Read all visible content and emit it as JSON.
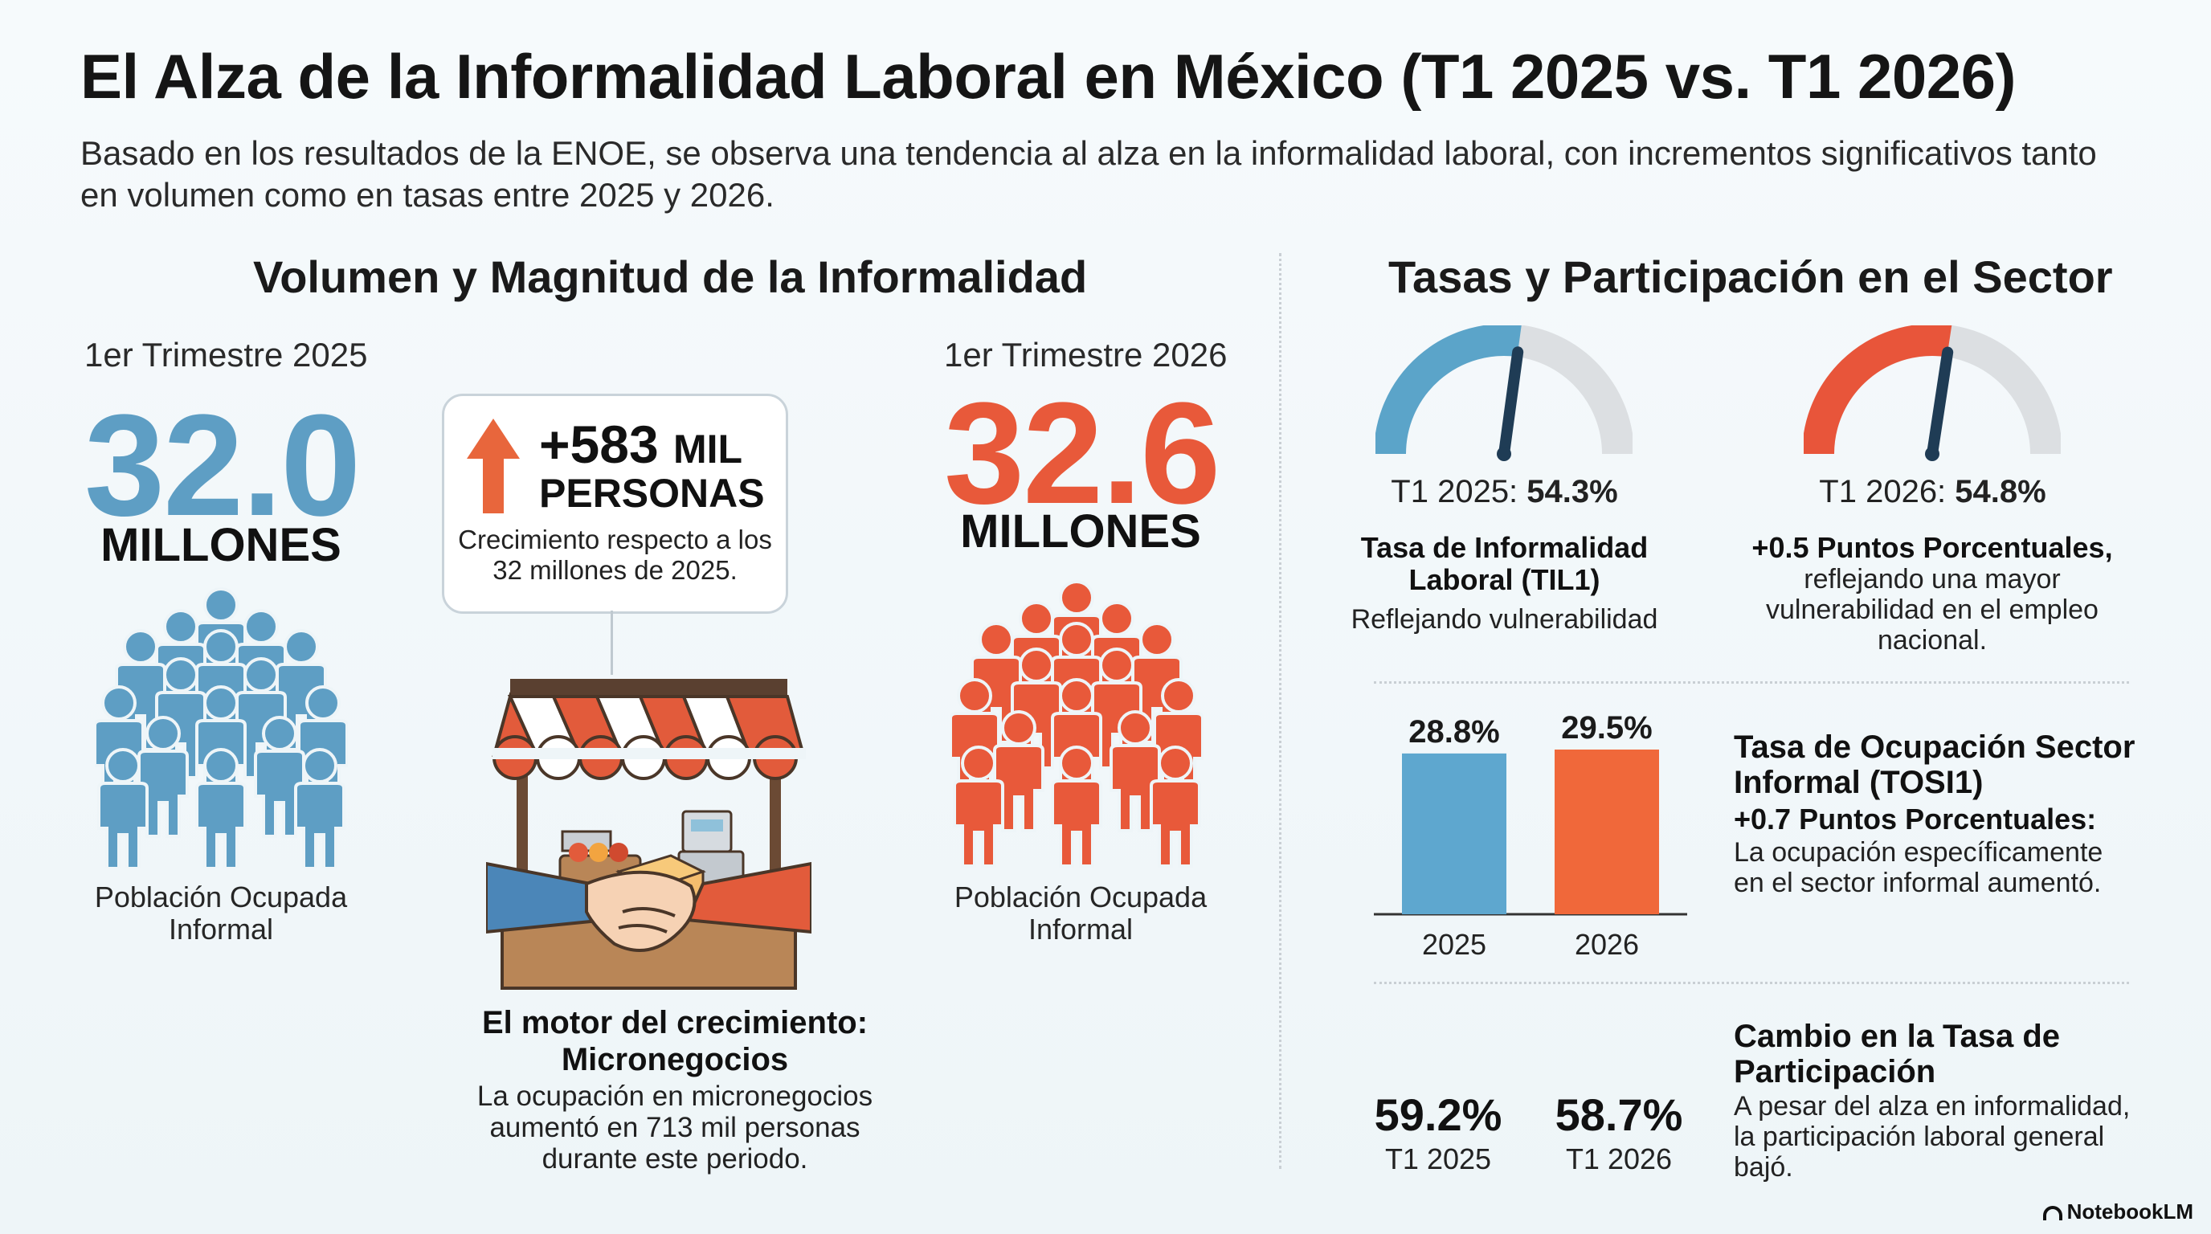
{
  "title": "El Alza de la Informalidad Laboral en México (T1 2025 vs. T1 2026)",
  "subtitle": "Basado en los resultados de la ENOE, se observa una tendencia al alza en la informalidad laboral, con incrementos significativos tanto en volumen como en tasas entre 2025 y 2026.",
  "left": {
    "heading": "Volumen y Magnitud de la Informalidad",
    "q2025": {
      "label": "1er Trimestre 2025",
      "value": "32.0",
      "unit": "MILLONES",
      "caption": "Población Ocupada Informal",
      "color": "#5e9ec4"
    },
    "q2026": {
      "label": "1er Trimestre 2026",
      "value": "32.6",
      "unit": "MILLONES",
      "caption": "Población Ocupada Informal",
      "color": "#e8593a"
    },
    "callout": {
      "number": "+583",
      "unit1": "MIL",
      "unit2": "PERSONAS",
      "text": "Crecimiento respecto a los 32 millones de 2025."
    },
    "motor": {
      "title": "El motor del crecimiento: Micronegocios",
      "text": "La ocupación en micronegocios aumentó en 713 mil personas durante este periodo."
    }
  },
  "right": {
    "heading": "Tasas y Participación en el Sector",
    "gauge1": {
      "prefix": "T1 2025:",
      "value": "54.3%",
      "level": 54.3,
      "color": "#5ba4c9",
      "title": "Tasa de Informalidad Laboral (TIL1)",
      "text": "Reflejando vulnerabilidad"
    },
    "gauge2": {
      "prefix": "T1 2026:",
      "value": "54.8%",
      "level": 54.8,
      "color": "#e8553a",
      "title": "+0.5 Puntos Porcentuales,",
      "text": "reflejando una mayor vulnerabilidad en el empleo nacional."
    },
    "tosi": {
      "title": "Tasa de Ocupación Sector Informal (TOSI1)",
      "bold": "+0.7 Puntos Porcentuales:",
      "text": "La ocupación específicamente en el sector informal aumentó."
    },
    "participation": {
      "title": "Cambio en la Tasa de Participación",
      "text": "A pesar del alza en informalidad, la participación laboral general bajó.",
      "v2025": "59.2%",
      "l2025": "T1 2025",
      "v2026": "58.7%",
      "l2026": "T1 2026"
    }
  },
  "chart_data": {
    "type": "bar",
    "categories": [
      "2025",
      "2026"
    ],
    "values": [
      28.8,
      29.5
    ],
    "labels": [
      "28.8%",
      "29.5%"
    ],
    "colors": [
      "#5ea7cf",
      "#f0683a"
    ],
    "title": "",
    "xlabel": "",
    "ylabel": ""
  },
  "brand": "NotebookLM"
}
